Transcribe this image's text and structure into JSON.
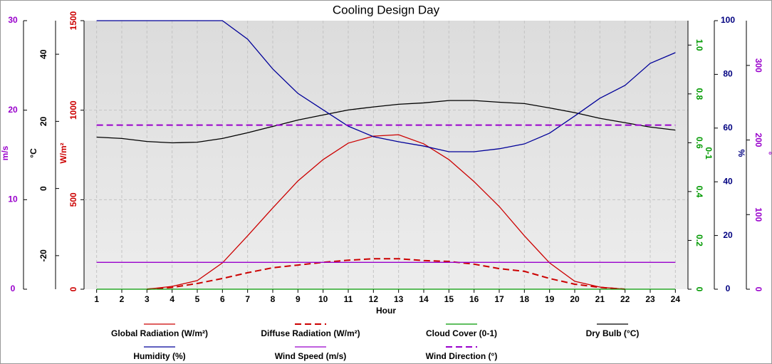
{
  "chart_data": {
    "type": "line",
    "title": "Cooling Design Day",
    "xlabel": "Hour",
    "x": [
      1,
      2,
      3,
      4,
      5,
      6,
      7,
      8,
      9,
      10,
      11,
      12,
      13,
      14,
      15,
      16,
      17,
      18,
      19,
      20,
      21,
      22,
      23,
      24
    ],
    "xlim": [
      0.5,
      24.5
    ],
    "xticks": [
      1,
      2,
      3,
      4,
      5,
      6,
      7,
      8,
      9,
      10,
      11,
      12,
      13,
      14,
      15,
      16,
      17,
      18,
      19,
      20,
      21,
      22,
      23,
      24
    ],
    "axes": [
      {
        "label": "m/s",
        "color": "#9900cc",
        "lim": [
          0,
          30
        ],
        "ticks": [
          0,
          10,
          20,
          30
        ]
      },
      {
        "label": "°C",
        "color": "#000000",
        "lim": [
          -30,
          50
        ],
        "ticks": [
          -20,
          0,
          20,
          40
        ]
      },
      {
        "label": "W/m²",
        "color": "#cc0000",
        "lim": [
          0,
          1500
        ],
        "ticks": [
          0,
          500,
          1000,
          1500
        ],
        "grid": true
      },
      {
        "label": "0-1",
        "color": "#009900",
        "lim": [
          0,
          1.1
        ],
        "ticks": [
          0,
          0.2,
          0.4,
          0.6,
          0.8,
          {
            "value": 1,
            "label": "1.0"
          }
        ]
      },
      {
        "label": "%",
        "color": "#000080",
        "lim": [
          0,
          100
        ],
        "ticks": [
          0,
          20,
          40,
          60,
          80,
          100
        ]
      },
      {
        "label": "°",
        "color": "#9900cc",
        "lim": [
          0,
          360
        ],
        "ticks": [
          0,
          100,
          200,
          300
        ]
      }
    ],
    "series": [
      {
        "name": "Global Radiation (W/m²)",
        "color": "#cc0000",
        "axis": "W/m²",
        "dashed": false,
        "values": [
          null,
          null,
          0,
          16,
          48,
          147,
          298,
          454,
          605,
          724,
          816,
          855,
          863,
          812,
          724,
          601,
          462,
          298,
          147,
          44,
          12,
          0,
          null,
          null
        ]
      },
      {
        "name": "Diffuse Radiation (W/m²)",
        "color": "#cc0000",
        "axis": "W/m²",
        "dashed": true,
        "values": [
          null,
          null,
          0,
          10,
          32,
          60,
          92,
          120,
          135,
          150,
          162,
          170,
          170,
          160,
          155,
          140,
          115,
          100,
          60,
          28,
          10,
          0,
          null,
          null
        ]
      },
      {
        "name": "Cloud Cover (0-1)",
        "color": "#009900",
        "axis": "0-1",
        "dashed": false,
        "values": [
          0,
          0,
          0,
          0,
          0,
          0,
          0,
          0,
          0,
          0,
          0,
          0,
          0,
          0,
          0,
          0,
          0,
          0,
          0,
          0,
          0,
          0,
          0,
          0
        ]
      },
      {
        "name": "Dry Bulb (°C)",
        "color": "#000000",
        "axis": "°C",
        "dashed": false,
        "values": [
          15.3,
          14.9,
          14.0,
          13.6,
          13.8,
          14.9,
          16.6,
          18.5,
          20.4,
          21.9,
          23.4,
          24.3,
          25.1,
          25.5,
          26.2,
          26.2,
          25.7,
          25.3,
          24.0,
          22.6,
          20.9,
          19.6,
          18.3,
          17.4
        ]
      },
      {
        "name": "Humidity (%)",
        "color": "#000099",
        "axis": "%",
        "dashed": false,
        "values": [
          100,
          100,
          100,
          100,
          100,
          100,
          93.1,
          82.0,
          72.9,
          66.8,
          60.7,
          56.8,
          54.9,
          53.3,
          51.2,
          51.2,
          52.3,
          54.1,
          58.1,
          64.5,
          71.1,
          75.9,
          84.1,
          88.1
        ]
      },
      {
        "name": "Wind Speed (m/s)",
        "color": "#9900cc",
        "axis": "m/s",
        "dashed": false,
        "values": [
          3,
          3,
          3,
          3,
          3,
          3,
          3,
          3,
          3,
          3,
          3,
          3,
          3,
          3,
          3,
          3,
          3,
          3,
          3,
          3,
          3,
          3,
          3,
          3
        ]
      },
      {
        "name": "Wind Direction (°)",
        "color": "#9900cc",
        "axis": "°",
        "dashed": true,
        "values": [
          220,
          220,
          220,
          220,
          220,
          220,
          220,
          220,
          220,
          220,
          220,
          220,
          220,
          220,
          220,
          220,
          220,
          220,
          220,
          220,
          220,
          220,
          220,
          220
        ]
      }
    ]
  }
}
